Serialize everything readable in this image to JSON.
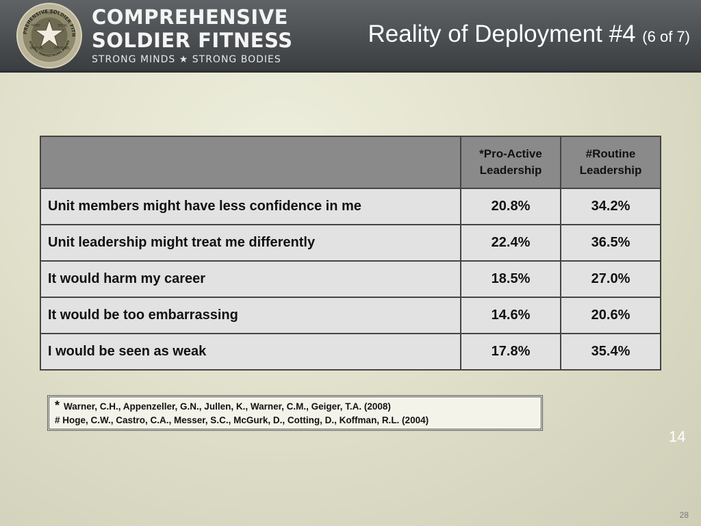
{
  "header": {
    "seal_text": [
      "COMPREHENSIVE SOLDIER FITNESS",
      "PHYSICAL",
      "FAMILY",
      "SOCIAL",
      "SPIRITUAL",
      "EMOTIONAL",
      "STRONG MINDS",
      "STRONG BODIES"
    ],
    "brand_line1": "COMPREHENSIVE",
    "brand_line2": "SOLDIER FITNESS",
    "tagline": "STRONG MINDS ★ STRONG BODIES",
    "title": "Reality of Deployment #4",
    "title_sub": "(6 of 7)"
  },
  "table": {
    "headers": [
      "",
      "*Pro-Active Leadership",
      "#Routine Leadership"
    ],
    "rows": [
      {
        "label": "Unit members might have less confidence in me",
        "proactive": "20.8%",
        "routine": "34.2%"
      },
      {
        "label": "Unit leadership might treat me differently",
        "proactive": "22.4%",
        "routine": "36.5%"
      },
      {
        "label": "It would harm my career",
        "proactive": "18.5%",
        "routine": "27.0%"
      },
      {
        "label": "It would be too embarrassing",
        "proactive": "14.6%",
        "routine": "20.6%"
      },
      {
        "label": "I would be seen as weak",
        "proactive": "17.8%",
        "routine": "35.4%"
      }
    ]
  },
  "references": {
    "line1_marker": "*",
    "line1": "Warner, C.H., Appenzeller, G.N., Jullen, K., Warner, C.M., Geiger, T.A. (2008)",
    "line2": "# Hoge, C.W., Castro, C.A., Messer, S.C., McGurk, D., Cotting, D., Koffman, R.L. (2004)"
  },
  "slide_number_mid": "14",
  "page_number": "28"
}
